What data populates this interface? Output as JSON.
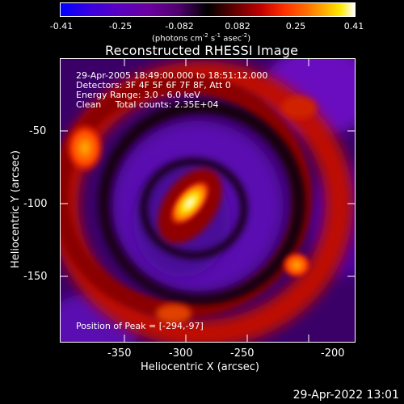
{
  "colorbar": {
    "ticks": [
      "-0.41",
      "-0.25",
      "-0.082",
      "0.082",
      "0.25",
      "0.41"
    ],
    "units_main": "(photons cm",
    "units_exp1": "-2",
    "units_mid1": " s",
    "units_exp2": "-1",
    "units_mid2": " asec",
    "units_exp3": "-2",
    "units_end": ")"
  },
  "title": "Reconstructed RHESSI Image",
  "info": {
    "line1": "29-Apr-2005 18:49:00.000 to 18:51:12.000",
    "line2": "Detectors: 3F 4F 5F 6F 7F 8F, Att 0",
    "line3": "Energy Range: 3.0 - 6.0 keV",
    "line4": "Clean     Total counts: 2.35E+04",
    "peak": "Position of Peak = [-294,-97]"
  },
  "axes": {
    "xlabel": "Heliocentric X (arcsec)",
    "ylabel": "Heliocentric Y (arcsec)",
    "xticks": [
      "-350",
      "-300",
      "-250",
      "-200"
    ],
    "yticks": [
      "-50",
      "-100",
      "-150"
    ],
    "xlim": [
      -388,
      -193
    ],
    "ylim": [
      -195,
      -17
    ]
  },
  "footer": {
    "date": "29-Apr-2022 13:01"
  },
  "colors": {
    "background": "#000000",
    "foreground": "#ffffff",
    "negative": "#5a00c0",
    "positive": "#ff3000",
    "peak": "#ffffff"
  }
}
